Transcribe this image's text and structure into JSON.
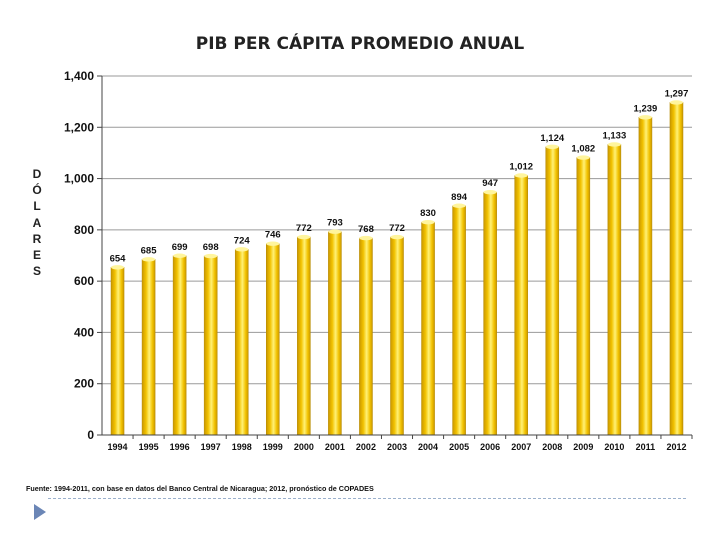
{
  "chart_data": {
    "type": "bar",
    "title": "PIB PER CÁPITA PROMEDIO ANUAL",
    "ylabel": "DÓLARES",
    "xlabel": "",
    "ylim": [
      0,
      1400
    ],
    "yticks": [
      "0",
      "200",
      "400",
      "600",
      "800",
      "1,000",
      "1,200",
      "1,400"
    ],
    "ytick_values": [
      0,
      200,
      400,
      600,
      800,
      1000,
      1200,
      1400
    ],
    "categories": [
      "1994",
      "1995",
      "1996",
      "1997",
      "1998",
      "1999",
      "2000",
      "2001",
      "2002",
      "2003",
      "2004",
      "2005",
      "2006",
      "2007",
      "2008",
      "2009",
      "2010",
      "2011",
      "2012"
    ],
    "values": [
      654,
      685,
      699,
      698,
      724,
      746,
      772,
      793,
      768,
      772,
      830,
      894,
      947,
      1012,
      1124,
      1082,
      1133,
      1239,
      1297
    ],
    "data_labels": [
      "654",
      "685",
      "699",
      "698",
      "724",
      "746",
      "772",
      "793",
      "768",
      "772",
      "830",
      "894",
      "947",
      "1,012",
      "1,124",
      "1,082",
      "1,133",
      "1,239",
      "1,297"
    ],
    "grid": true,
    "bar_color": "#f2c200"
  },
  "footer": {
    "source": "Fuente: 1994-2011, con base en datos del Banco Central de Nicaragua; 2012, pronóstico de COPADES"
  },
  "colors": {
    "bar_light": "#fff176",
    "bar_main": "#f2c200",
    "bar_dark": "#c99700",
    "grid": "#9a9a9a",
    "accent": "#6b86b6"
  }
}
